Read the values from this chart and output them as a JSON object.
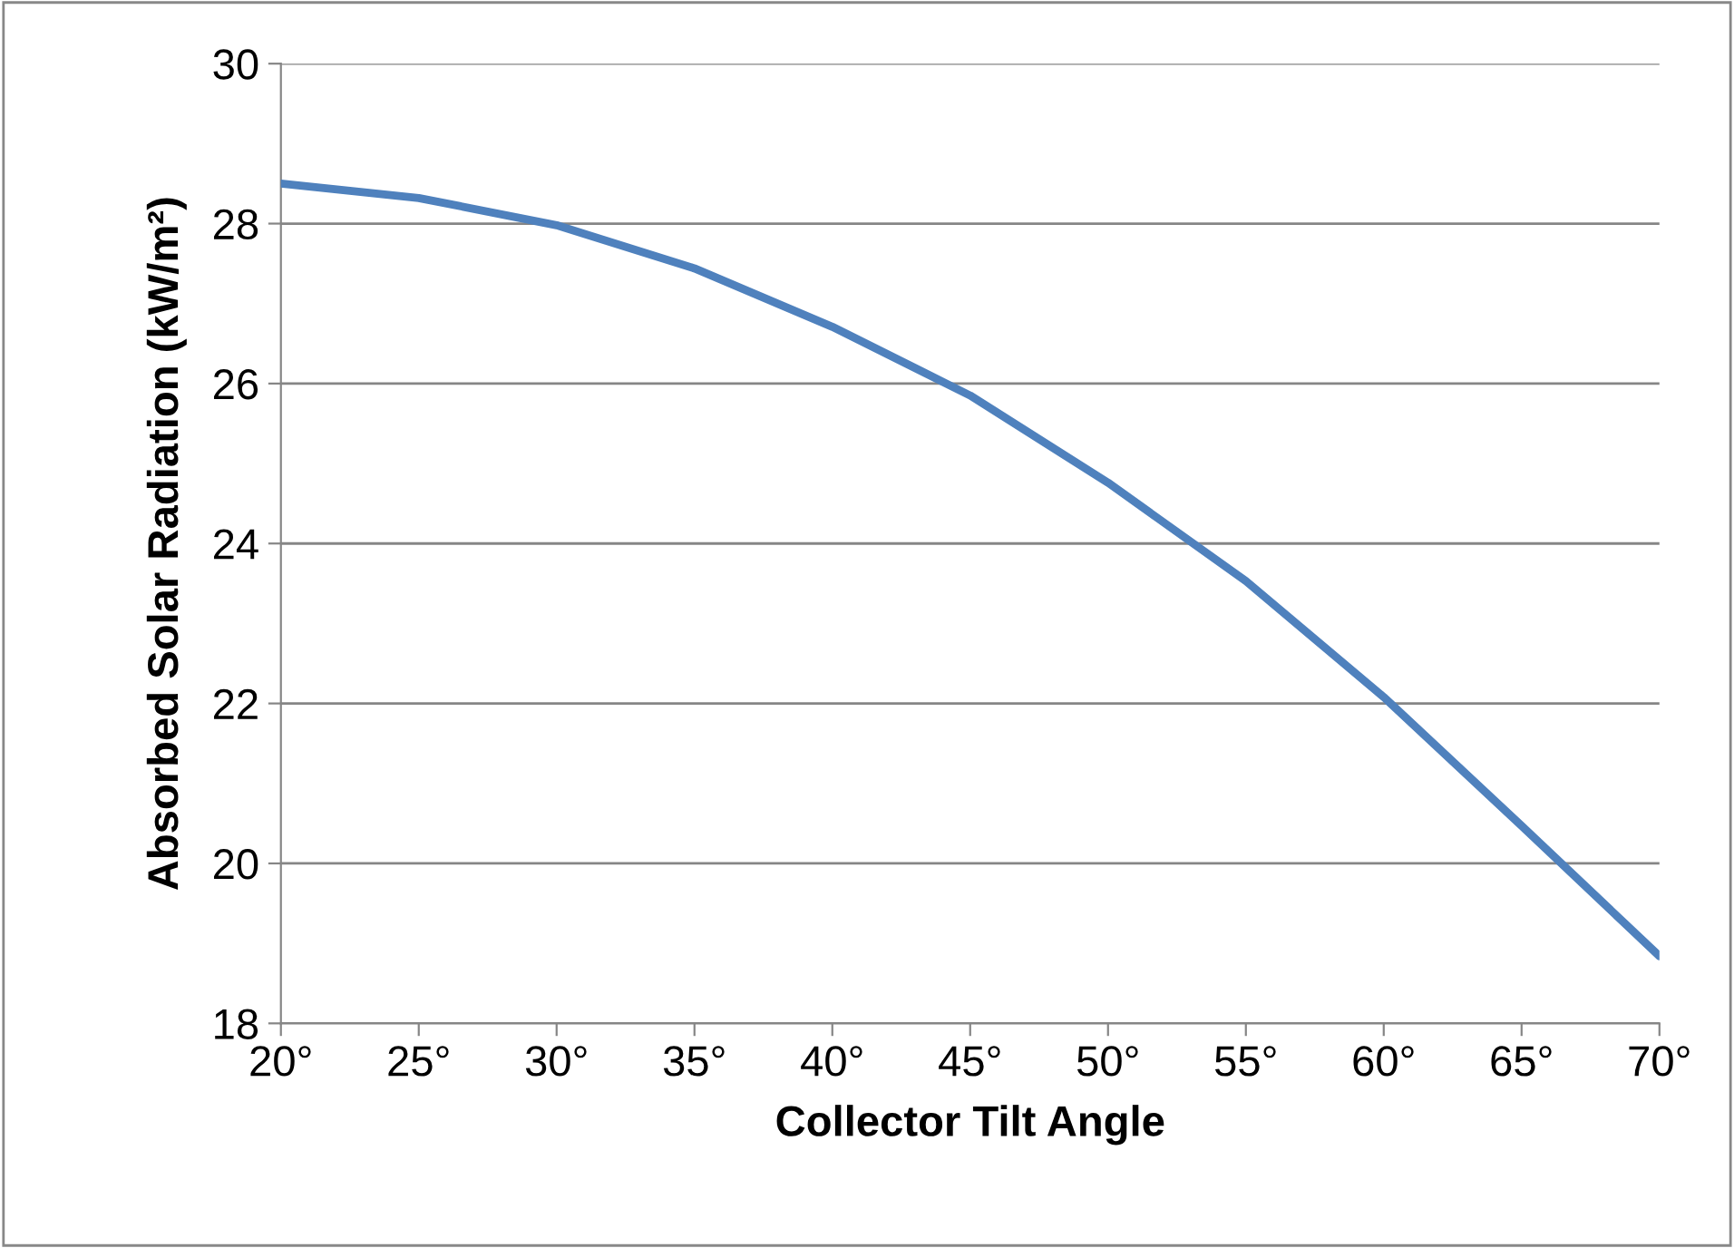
{
  "chart_data": {
    "type": "line",
    "xlabel": "Collector Tilt Angle",
    "ylabel": "Absorbed Solar Radiation (kW/m²)",
    "categories": [
      "20°",
      "25°",
      "30°",
      "35°",
      "40°",
      "45°",
      "50°",
      "55°",
      "60°",
      "65°",
      "70°"
    ],
    "series": [
      {
        "color": "#4f81bd",
        "values": [
          28.5,
          28.32,
          27.98,
          27.44,
          26.71,
          25.85,
          24.76,
          23.53,
          22.08,
          20.47,
          18.84
        ]
      }
    ],
    "ylim": [
      18,
      30
    ],
    "yticks": [
      18,
      20,
      22,
      24,
      26,
      28,
      30
    ],
    "grid": "y",
    "marker": "none",
    "line_style": "solid",
    "legend": false
  }
}
